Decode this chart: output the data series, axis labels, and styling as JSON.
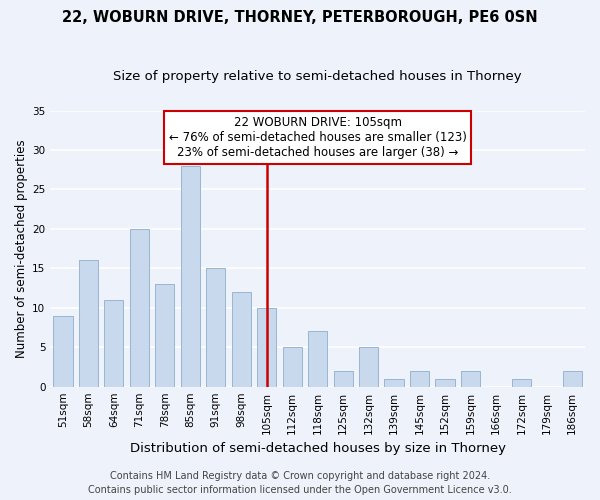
{
  "title": "22, WOBURN DRIVE, THORNEY, PETERBOROUGH, PE6 0SN",
  "subtitle": "Size of property relative to semi-detached houses in Thorney",
  "xlabel": "Distribution of semi-detached houses by size in Thorney",
  "ylabel": "Number of semi-detached properties",
  "bin_labels": [
    "51sqm",
    "58sqm",
    "64sqm",
    "71sqm",
    "78sqm",
    "85sqm",
    "91sqm",
    "98sqm",
    "105sqm",
    "112sqm",
    "118sqm",
    "125sqm",
    "132sqm",
    "139sqm",
    "145sqm",
    "152sqm",
    "159sqm",
    "166sqm",
    "172sqm",
    "179sqm",
    "186sqm"
  ],
  "values": [
    9,
    16,
    11,
    20,
    13,
    28,
    15,
    12,
    10,
    5,
    7,
    2,
    5,
    1,
    2,
    1,
    2,
    0,
    1,
    0,
    2
  ],
  "bar_color": "#c8d9ed",
  "bar_edge_color": "#9ab5d0",
  "vline_x_index": 8,
  "vline_color": "#cc0000",
  "annotation_box_text": "22 WOBURN DRIVE: 105sqm\n← 76% of semi-detached houses are smaller (123)\n23% of semi-detached houses are larger (38) →",
  "annotation_box_color": "#ffffff",
  "annotation_box_edge_color": "#cc0000",
  "ylim": [
    0,
    35
  ],
  "yticks": [
    0,
    5,
    10,
    15,
    20,
    25,
    30,
    35
  ],
  "footer1": "Contains HM Land Registry data © Crown copyright and database right 2024.",
  "footer2": "Contains public sector information licensed under the Open Government Licence v3.0.",
  "background_color": "#eef2fa",
  "grid_color": "#ffffff",
  "title_fontsize": 10.5,
  "subtitle_fontsize": 9.5,
  "xlabel_fontsize": 9.5,
  "ylabel_fontsize": 8.5,
  "tick_fontsize": 7.5,
  "annotation_fontsize": 8.5,
  "footer_fontsize": 7
}
